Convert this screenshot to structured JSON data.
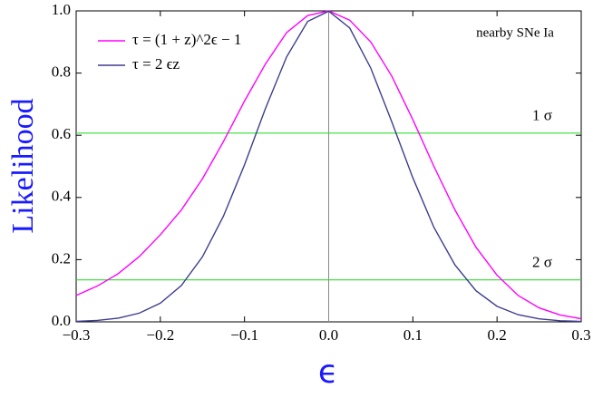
{
  "chart_data": {
    "type": "line",
    "x": [
      -0.3,
      -0.275,
      -0.25,
      -0.225,
      -0.2,
      -0.175,
      -0.15,
      -0.125,
      -0.1,
      -0.075,
      -0.05,
      -0.025,
      0,
      0.025,
      0.05,
      0.075,
      0.1,
      0.125,
      0.15,
      0.175,
      0.2,
      0.225,
      0.25,
      0.275,
      0.3
    ],
    "series": [
      {
        "name": "τ = (1 + z)^2ϵ − 1",
        "color": "#ff00ff",
        "values": [
          0.085,
          0.115,
          0.155,
          0.21,
          0.28,
          0.36,
          0.46,
          0.58,
          0.71,
          0.83,
          0.93,
          0.985,
          1.0,
          0.97,
          0.9,
          0.79,
          0.65,
          0.5,
          0.36,
          0.24,
          0.15,
          0.085,
          0.045,
          0.022,
          0.01
        ]
      },
      {
        "name": "τ = 2 ϵz",
        "color": "#3d3d8f",
        "values": [
          0.0017,
          0.0047,
          0.012,
          0.028,
          0.06,
          0.117,
          0.209,
          0.34,
          0.505,
          0.687,
          0.852,
          0.966,
          0.999,
          0.945,
          0.816,
          0.643,
          0.463,
          0.304,
          0.183,
          0.1,
          0.05,
          0.023,
          0.0096,
          0.0036,
          0.0013
        ]
      }
    ],
    "xlabel": "ϵ",
    "ylabel": "Likelihood",
    "annotation": "nearby SNe Ia",
    "reference_lines": [
      {
        "value": 0.607,
        "label": "1 σ",
        "color": "#33dd33"
      },
      {
        "value": 0.135,
        "label": "2 σ",
        "color": "#33dd33"
      }
    ],
    "vlines": [
      0
    ],
    "xlim": [
      -0.3,
      0.3
    ],
    "ylim": [
      0,
      1.0
    ],
    "xticks": [
      {
        "value": -0.3,
        "label": "−0.3"
      },
      {
        "value": -0.2,
        "label": "−0.2"
      },
      {
        "value": -0.1,
        "label": "−0.1"
      },
      {
        "value": 0,
        "label": "0.0"
      },
      0.1,
      0.2,
      0.3
    ],
    "yticks": [
      {
        "value": 0,
        "label": "0.0"
      },
      0.2,
      0.4,
      0.6,
      0.8,
      {
        "value": 1.0,
        "label": "1.0"
      }
    ]
  }
}
